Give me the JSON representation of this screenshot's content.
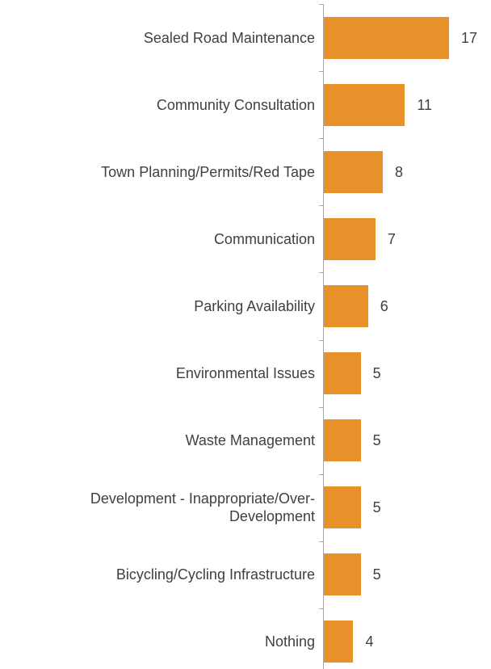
{
  "chart_data": {
    "type": "bar",
    "orientation": "horizontal",
    "categories": [
      "Sealed Road Maintenance",
      "Community Consultation",
      "Town Planning/Permits/Red Tape",
      "Communication",
      "Parking Availability",
      "Environmental Issues",
      "Waste Management",
      "Development - Inappropriate/Over-Development",
      "Bicycling/Cycling Infrastructure",
      "Nothing"
    ],
    "values": [
      17,
      11,
      8,
      7,
      6,
      5,
      5,
      5,
      5,
      4
    ],
    "color": "#e8912a"
  }
}
